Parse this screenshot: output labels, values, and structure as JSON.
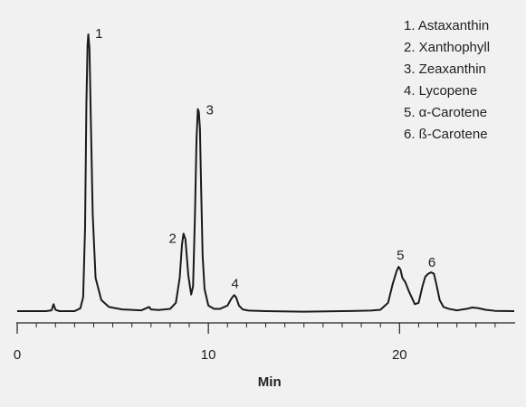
{
  "chart_data": {
    "type": "line",
    "title": "",
    "xlabel": "Min",
    "ylabel": "",
    "xlim": [
      0,
      26
    ],
    "ylim": [
      0,
      100
    ],
    "grid": false,
    "legend_position": "top-right",
    "x_ticks": [
      {
        "value": 0,
        "label": "0"
      },
      {
        "value": 10,
        "label": "10"
      },
      {
        "value": 20,
        "label": "20"
      }
    ],
    "x_minor_ticks": [
      1,
      2,
      3,
      4,
      5,
      6,
      7,
      8,
      9,
      11,
      12,
      13,
      14,
      15,
      16,
      17,
      18,
      19,
      21,
      22,
      23,
      24,
      25
    ],
    "legend": [
      "1. Astaxanthin",
      "2. Xanthophyll",
      "3. Zeaxanthin",
      "4. Lycopene",
      "5. α-Carotene",
      "6. ß-Carotene"
    ],
    "peaks": [
      {
        "label": "1",
        "x": 3.7,
        "y": 100
      },
      {
        "label": "2",
        "x": 8.7,
        "y": 28
      },
      {
        "label": "3",
        "x": 9.5,
        "y": 73
      },
      {
        "label": "4",
        "x": 11.4,
        "y": 5.8
      },
      {
        "label": "5",
        "x": 19.95,
        "y": 16
      },
      {
        "label": "6",
        "x": 21.6,
        "y": 14
      }
    ],
    "series": [
      {
        "x": [
          0,
          1.5,
          1.8,
          1.9,
          2.0,
          2.2,
          3.0,
          3.3,
          3.45,
          3.55,
          3.62,
          3.68,
          3.72,
          3.78,
          3.85,
          3.95,
          4.1,
          4.4,
          4.8,
          5.5,
          6.5,
          6.8,
          6.9,
          7.0,
          7.4,
          8.0,
          8.3,
          8.5,
          8.62,
          8.7,
          8.8,
          8.95,
          9.1,
          9.2,
          9.3,
          9.38,
          9.45,
          9.5,
          9.56,
          9.62,
          9.7,
          9.8,
          10.0,
          10.3,
          10.6,
          11.0,
          11.2,
          11.35,
          11.45,
          11.6,
          11.8,
          12.1,
          13.0,
          15.0,
          17.0,
          18.5,
          19.0,
          19.4,
          19.65,
          19.85,
          19.95,
          20.05,
          20.15,
          20.3,
          20.5,
          20.8,
          21.0,
          21.2,
          21.35,
          21.5,
          21.65,
          21.8,
          21.95,
          22.1,
          22.3,
          22.6,
          23.0,
          23.5,
          23.8,
          24.1,
          24.5,
          25.0,
          26.0
        ],
        "y": [
          0,
          0,
          0.3,
          2.5,
          0.5,
          0,
          0,
          1,
          5,
          30,
          75,
          96,
          100,
          95,
          70,
          35,
          12,
          4,
          1.5,
          0.6,
          0.3,
          1.2,
          1.5,
          0.6,
          0.4,
          0.8,
          3,
          12,
          24,
          28,
          26,
          13,
          6,
          9,
          35,
          62,
          73,
          72,
          66,
          45,
          20,
          8,
          2,
          0.8,
          0.8,
          2,
          4.5,
          5.8,
          5,
          2,
          0.6,
          0.2,
          0,
          -0.2,
          0,
          0.2,
          0.5,
          3,
          10,
          14.5,
          16,
          15,
          12,
          10.5,
          7,
          2.5,
          3,
          9,
          12.5,
          13.5,
          14,
          13.5,
          9,
          4,
          1.5,
          0.8,
          0.3,
          0.8,
          1.3,
          1.1,
          0.5,
          0.1,
          0
        ]
      }
    ]
  }
}
